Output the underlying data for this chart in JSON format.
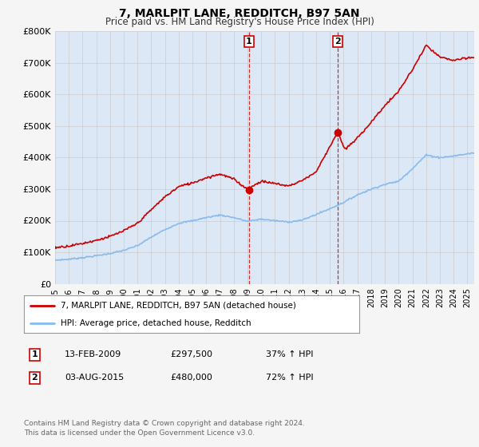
{
  "title": "7, MARLPIT LANE, REDDITCH, B97 5AN",
  "subtitle": "Price paid vs. HM Land Registry's House Price Index (HPI)",
  "title_fontsize": 10,
  "subtitle_fontsize": 8.5,
  "background_color": "#f5f5f5",
  "plot_bg_color": "#dce8f5",
  "ylim": [
    0,
    800000
  ],
  "yticks": [
    0,
    100000,
    200000,
    300000,
    400000,
    500000,
    600000,
    700000,
    800000
  ],
  "ytick_labels": [
    "£0",
    "£100K",
    "£200K",
    "£300K",
    "£400K",
    "£500K",
    "£600K",
    "£700K",
    "£800K"
  ],
  "xlim_start": 1995.0,
  "xlim_end": 2025.5,
  "house_line_color": "#cc0000",
  "hpi_line_color": "#88bbee",
  "marker_color": "#cc0000",
  "transaction1_x": 2009.1,
  "transaction1_y": 297500,
  "transaction2_x": 2015.58,
  "transaction2_y": 480000,
  "legend_line1": "7, MARLPIT LANE, REDDITCH, B97 5AN (detached house)",
  "legend_line2": "HPI: Average price, detached house, Redditch",
  "table_row1": [
    "1",
    "13-FEB-2009",
    "£297,500",
    "37% ↑ HPI"
  ],
  "table_row2": [
    "2",
    "03-AUG-2015",
    "£480,000",
    "72% ↑ HPI"
  ],
  "footer_line1": "Contains HM Land Registry data © Crown copyright and database right 2024.",
  "footer_line2": "This data is licensed under the Open Government Licence v3.0.",
  "grid_color": "#cccccc",
  "house_linewidth": 1.2,
  "hpi_linewidth": 1.2
}
